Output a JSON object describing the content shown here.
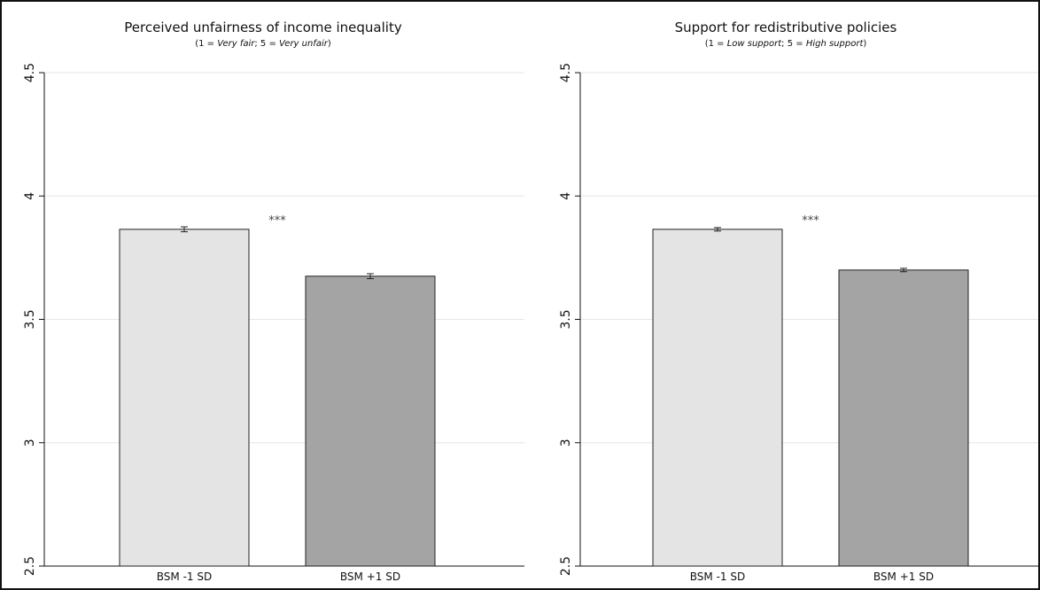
{
  "chart_data": [
    {
      "type": "bar",
      "title": "Perceived unfairness of income inequality",
      "subtitle": {
        "open": "(1 = ",
        "low_label": "Very fair",
        "mid": "; 5 = ",
        "high_label": "Very unfair",
        "close": ")"
      },
      "categories": [
        "BSM -1 SD",
        "BSM +1 SD"
      ],
      "values": [
        3.865,
        3.675
      ],
      "error_bars": [
        [
          3.855,
          3.875
        ],
        [
          3.665,
          3.685
        ]
      ],
      "bar_colors": [
        "#e3e4e3",
        "#a3a4a3"
      ],
      "ylim": [
        2.5,
        4.5
      ],
      "yticks": [
        2.5,
        3,
        3.5,
        4,
        4.5
      ],
      "ytick_labels": [
        "2.5",
        "3",
        "3.5",
        "4",
        "4.5"
      ],
      "grid": true,
      "annotation": "***",
      "xlabel": "",
      "ylabel": ""
    },
    {
      "type": "bar",
      "title": "Support for redistributive policies",
      "subtitle": {
        "open": "(1 = ",
        "low_label": "Low support",
        "mid": "; 5 = ",
        "high_label": "High support",
        "close": ")"
      },
      "categories": [
        "BSM -1 SD",
        "BSM +1 SD"
      ],
      "values": [
        3.865,
        3.7
      ],
      "error_bars": [
        [
          3.858,
          3.872
        ],
        [
          3.693,
          3.707
        ]
      ],
      "bar_colors": [
        "#e3e4e3",
        "#a3a4a3"
      ],
      "ylim": [
        2.5,
        4.5
      ],
      "yticks": [
        2.5,
        3,
        3.5,
        4,
        4.5
      ],
      "ytick_labels": [
        "2.5",
        "3",
        "3.5",
        "4",
        "4.5"
      ],
      "grid": true,
      "annotation": "***",
      "xlabel": "",
      "ylabel": ""
    }
  ]
}
